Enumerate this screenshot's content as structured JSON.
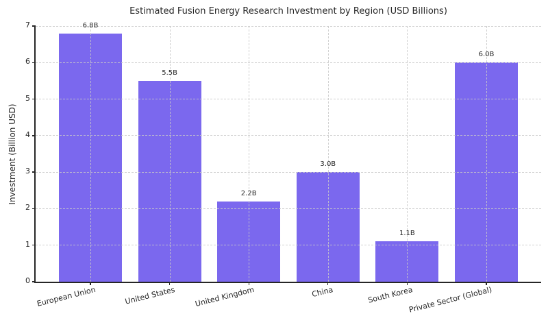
{
  "chart_data": {
    "type": "bar",
    "title": "Estimated Fusion Energy Research Investment by Region (USD Billions)",
    "xlabel": "",
    "ylabel": "Investment (Billion USD)",
    "categories": [
      "European Union",
      "United States",
      "United Kingdom",
      "China",
      "South Korea",
      "Private Sector (Global)"
    ],
    "values": [
      6.8,
      5.5,
      2.2,
      3.0,
      1.1,
      6.0
    ],
    "bar_labels": [
      "6.8B",
      "5.5B",
      "2.2B",
      "3.0B",
      "1.1B",
      "6.0B"
    ],
    "ylim": [
      0,
      7
    ],
    "yticks": [
      "0",
      "1",
      "2",
      "3",
      "4",
      "5",
      "6",
      "7"
    ],
    "grid": "dashed, horizontal and vertical, drawn above bars",
    "legend_position": "none",
    "colors": {
      "bar": "#7b68ee",
      "axis": "#262626",
      "text": "#262626",
      "grid": "#c8c8c8",
      "background": "#ffffff"
    }
  }
}
